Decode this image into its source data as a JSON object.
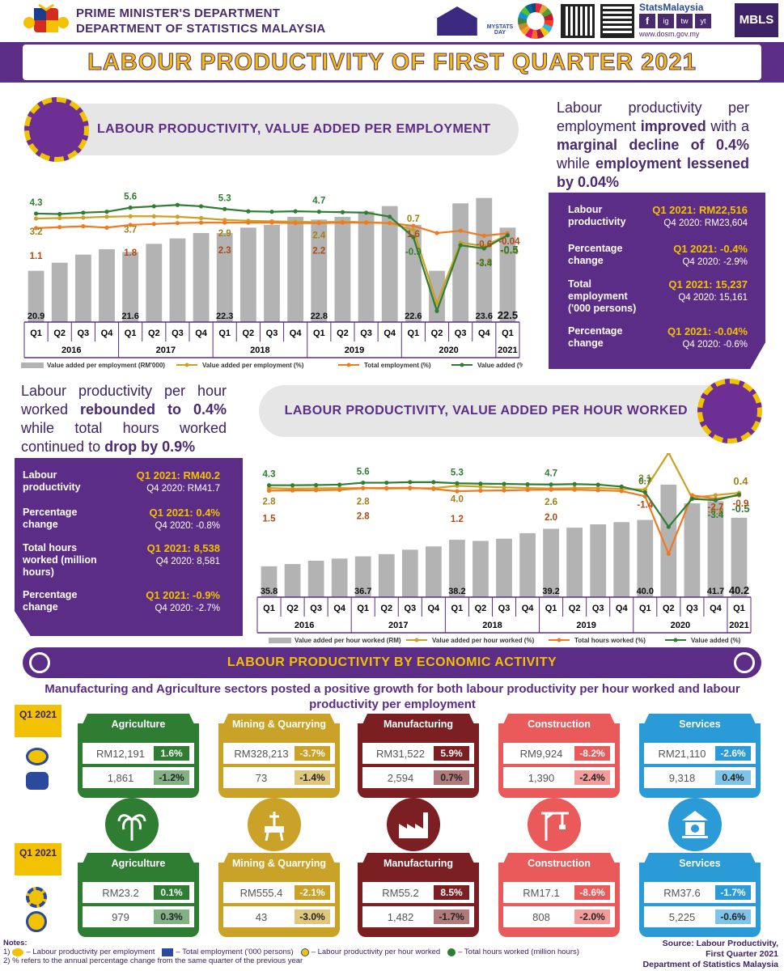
{
  "header": {
    "org_line1": "PRIME MINISTER'S DEPARTMENT",
    "org_line2": "DEPARTMENT OF STATISTICS MALAYSIA",
    "brand": "StatsMalaysia",
    "website": "www.dosm.gov.my",
    "mbls": "MBLS",
    "mystats": "MYSTATS DAY",
    "social": [
      "f",
      "ig",
      "tw",
      "yt"
    ]
  },
  "title": "LABOUR PRODUCTIVITY OF FIRST QUARTER 2021",
  "section1": {
    "title": "LABOUR PRODUCTIVITY, VALUE ADDED PER EMPLOYMENT",
    "narrative": {
      "p1": "Labour productivity per employment ",
      "b1": "improved",
      "p2": " with a ",
      "b2": "marginal decline of 0.4%",
      "p3": " while ",
      "b3": "employment lessened by 0.04%"
    },
    "panel": [
      {
        "label": "Labour productivity",
        "v1": "Q1 2021: RM22,516",
        "v2": "Q4 2020: RM23,604"
      },
      {
        "label": "Percentage change",
        "v1": "Q1 2021: -0.4%",
        "v2": "Q4 2020: -2.9%"
      },
      {
        "label": "Total employment ('000 persons)",
        "v1": "Q1 2021: 15,237",
        "v2": "Q4 2020: 15,161"
      },
      {
        "label": "Percentage change",
        "v1": "Q1 2021: -0.04%",
        "v2": "Q4 2020: -0.6%"
      }
    ]
  },
  "section2": {
    "title": "LABOUR PRODUCTIVITY, VALUE ADDED PER HOUR WORKED",
    "narrative": {
      "p1": "Labour productivity per hour worked ",
      "b1": "rebounded to 0.4%",
      "p2": " while total hours worked continued to ",
      "b2": "drop by 0.9%"
    },
    "panel": [
      {
        "label": "Labour productivity",
        "v1": "Q1 2021: RM40.2",
        "v2": "Q4 2020: RM41.7"
      },
      {
        "label": "Percentage change",
        "v1": "Q1 2021: 0.4%",
        "v2": "Q4 2020: -0.8%"
      },
      {
        "label": "Total hours worked (million hours)",
        "v1": "Q1 2021: 8,538",
        "v2": "Q4 2020: 8,581"
      },
      {
        "label": "Percentage change",
        "v1": "Q1 2021: -0.9%",
        "v2": "Q4 2020: -2.7%"
      }
    ]
  },
  "chart_data": [
    {
      "type": "bar",
      "title": "Labour productivity, value added per employment",
      "categories": [
        "Q1",
        "Q2",
        "Q3",
        "Q4",
        "Q1",
        "Q2",
        "Q3",
        "Q4",
        "Q1",
        "Q2",
        "Q3",
        "Q4",
        "Q1",
        "Q2",
        "Q3",
        "Q4",
        "Q1",
        "Q2",
        "Q3",
        "Q4",
        "Q1"
      ],
      "years": [
        "2016",
        "2017",
        "2018",
        "2019",
        "2020",
        "2021"
      ],
      "series": [
        {
          "name": "Value added per employment (RM'000)",
          "kind": "bar",
          "values": [
            20.9,
            21.2,
            21.5,
            21.7,
            21.6,
            21.9,
            22.1,
            22.3,
            22.3,
            22.5,
            22.6,
            22.9,
            22.8,
            22.9,
            23.1,
            23.3,
            22.6,
            20.9,
            23.4,
            23.6,
            22.5
          ]
        },
        {
          "name": "Value added per employment (%)",
          "kind": "line",
          "color": "#c9a227",
          "values": [
            3.2,
            3.3,
            3.4,
            3.6,
            3.7,
            3.7,
            3.6,
            3.3,
            2.9,
            2.7,
            2.6,
            2.5,
            2.4,
            2.5,
            2.4,
            2.2,
            0.7,
            -15.5,
            -2.1,
            -2.9,
            -0.4
          ]
        },
        {
          "name": "Total employment (%)",
          "kind": "line",
          "color": "#f07a22",
          "values": [
            1.1,
            1.3,
            1.5,
            1.2,
            1.8,
            2.0,
            2.2,
            2.3,
            2.3,
            2.3,
            2.3,
            2.2,
            2.2,
            2.3,
            2.3,
            2.2,
            1.6,
            0.0,
            0.5,
            -0.6,
            -0.04
          ]
        },
        {
          "name": "Value added (%)",
          "kind": "line",
          "color": "#2e7d32",
          "values": [
            4.3,
            4.2,
            4.5,
            4.7,
            5.6,
            5.9,
            6.2,
            5.9,
            5.3,
            4.8,
            4.7,
            4.8,
            4.7,
            4.6,
            4.5,
            3.6,
            -0.9,
            -17.2,
            -2.7,
            -3.4,
            -0.5
          ]
        }
      ],
      "bar_labels": {
        "0": "20.9",
        "4": "21.6",
        "8": "22.3",
        "12": "22.8",
        "16": "22.6",
        "19": "23.6",
        "20": "22.5"
      },
      "line_labels": [
        {
          "series": 3,
          "i": 0,
          "text": "4.3"
        },
        {
          "series": 1,
          "i": 0,
          "text": "3.2"
        },
        {
          "series": 2,
          "i": 0,
          "text": "1.1"
        },
        {
          "series": 3,
          "i": 4,
          "text": "5.6"
        },
        {
          "series": 1,
          "i": 4,
          "text": "3.7"
        },
        {
          "series": 2,
          "i": 4,
          "text": "1.8"
        },
        {
          "series": 3,
          "i": 8,
          "text": "5.3"
        },
        {
          "series": 1,
          "i": 8,
          "text": "2.9"
        },
        {
          "series": 2,
          "i": 8,
          "text": "2.3"
        },
        {
          "series": 3,
          "i": 12,
          "text": "4.7"
        },
        {
          "series": 1,
          "i": 12,
          "text": "2.4"
        },
        {
          "series": 2,
          "i": 12,
          "text": "2.2"
        },
        {
          "series": 2,
          "i": 16,
          "text": "1.6"
        },
        {
          "series": 1,
          "i": 16,
          "text": "0.7"
        },
        {
          "series": 3,
          "i": 16,
          "text": "-0.9"
        },
        {
          "series": 2,
          "i": 19,
          "text": "-0.6"
        },
        {
          "series": 1,
          "i": 19,
          "text": "-2.9"
        },
        {
          "series": 3,
          "i": 19,
          "text": "-3.4"
        },
        {
          "series": 2,
          "i": 20,
          "text": "-0.04"
        },
        {
          "series": 1,
          "i": 20,
          "text": "-0.4"
        },
        {
          "series": 3,
          "i": 20,
          "text": "-0.5"
        }
      ],
      "legend": [
        "Value added per employment (RM'000)",
        "Value added per employment (%)",
        "Total employment (%)",
        "Value added  (%)"
      ]
    },
    {
      "type": "bar",
      "title": "Labour productivity, value added per hour worked",
      "categories": [
        "Q1",
        "Q2",
        "Q3",
        "Q4",
        "Q1",
        "Q2",
        "Q3",
        "Q4",
        "Q1",
        "Q2",
        "Q3",
        "Q4",
        "Q1",
        "Q2",
        "Q3",
        "Q4",
        "Q1",
        "Q2",
        "Q3",
        "Q4",
        "Q1"
      ],
      "years": [
        "2016",
        "2017",
        "2018",
        "2019",
        "2020",
        "2021"
      ],
      "series": [
        {
          "name": "Value added per hour worked (RM)",
          "kind": "bar",
          "values": [
            35.8,
            36.0,
            36.3,
            36.5,
            36.7,
            36.9,
            37.3,
            37.6,
            38.2,
            38.1,
            38.3,
            38.8,
            39.2,
            39.3,
            39.6,
            39.8,
            40.0,
            43.2,
            41.5,
            41.7,
            40.2
          ]
        },
        {
          "name": "Value added per hour worked (%)",
          "kind": "line",
          "color": "#c9a227",
          "values": [
            2.8,
            2.5,
            2.7,
            2.8,
            2.8,
            2.6,
            2.7,
            2.8,
            4.0,
            3.6,
            3.2,
            2.9,
            2.6,
            2.8,
            2.9,
            2.4,
            2.1,
            21.0,
            -2.2,
            -0.8,
            0.4
          ]
        },
        {
          "name": "Total hours worked (%)",
          "kind": "line",
          "color": "#f07a22",
          "values": [
            1.5,
            1.6,
            1.7,
            1.9,
            2.8,
            2.9,
            3.0,
            2.4,
            1.2,
            1.5,
            1.6,
            1.9,
            2.0,
            2.0,
            1.7,
            1.3,
            -1.4,
            -31.0,
            -0.8,
            -2.7,
            -0.9
          ]
        },
        {
          "name": "Value added (%)",
          "kind": "line",
          "color": "#2e7d32",
          "values": [
            4.3,
            4.3,
            4.4,
            4.6,
            5.6,
            5.6,
            5.9,
            5.9,
            5.3,
            5.1,
            5.0,
            4.8,
            4.7,
            4.9,
            4.6,
            3.6,
            0.7,
            -17.1,
            -2.7,
            -3.4,
            -0.5
          ]
        }
      ],
      "bar_labels": {
        "0": "35.8",
        "4": "36.7",
        "8": "38.2",
        "12": "39.2",
        "16": "40.0",
        "19": "41.7",
        "20": "40.2"
      },
      "line_labels": [
        {
          "series": 3,
          "i": 0,
          "text": "4.3"
        },
        {
          "series": 1,
          "i": 0,
          "text": "2.8"
        },
        {
          "series": 2,
          "i": 0,
          "text": "1.5"
        },
        {
          "series": 3,
          "i": 4,
          "text": "5.6"
        },
        {
          "series": 1,
          "i": 4,
          "text": "2.8"
        },
        {
          "series": 2,
          "i": 4,
          "text": "2.8"
        },
        {
          "series": 3,
          "i": 8,
          "text": "5.3"
        },
        {
          "series": 1,
          "i": 8,
          "text": "4.0"
        },
        {
          "series": 2,
          "i": 8,
          "text": "1.2"
        },
        {
          "series": 3,
          "i": 12,
          "text": "4.7"
        },
        {
          "series": 1,
          "i": 12,
          "text": "2.6"
        },
        {
          "series": 2,
          "i": 12,
          "text": "2.0"
        },
        {
          "series": 1,
          "i": 16,
          "text": "2.1"
        },
        {
          "series": 3,
          "i": 16,
          "text": "0.7"
        },
        {
          "series": 2,
          "i": 16,
          "text": "-1.4"
        },
        {
          "series": 1,
          "i": 19,
          "text": "-0.8"
        },
        {
          "series": 2,
          "i": 19,
          "text": "-2.7"
        },
        {
          "series": 3,
          "i": 19,
          "text": "-3.4"
        },
        {
          "series": 1,
          "i": 20,
          "text": "0.4"
        },
        {
          "series": 3,
          "i": 20,
          "text": "-0.5"
        },
        {
          "series": 2,
          "i": 20,
          "text": "-0.9"
        }
      ],
      "legend": [
        "Value added per hour worked (RM)",
        "Value added per hour worked (%)",
        "Total hours worked (%)",
        "Value added  (%)"
      ]
    }
  ],
  "activity": {
    "bar_title": "LABOUR PRODUCTIVITY BY ECONOMIC ACTIVITY",
    "subtitle": "Manufacturing and Agriculture sectors posted a positive growth for both labour productivity per hour worked and labour productivity per employment",
    "quarter_label": "Q1 2021",
    "employment": [
      {
        "name": "Agriculture",
        "color": "#2e7d32",
        "v1": "RM12,191",
        "p1": "1.6%",
        "v2": "1,861",
        "p2": "-1.2%"
      },
      {
        "name": "Mining & Quarrying",
        "color": "#c9a227",
        "v1": "RM328,213",
        "p1": "-3.7%",
        "v2": "73",
        "p2": "-1.4%"
      },
      {
        "name": "Manufacturing",
        "color": "#7b1f22",
        "v1": "RM31,522",
        "p1": "5.9%",
        "v2": "2,594",
        "p2": "0.7%"
      },
      {
        "name": "Construction",
        "color": "#ea5a5a",
        "v1": "RM9,924",
        "p1": "-8.2%",
        "v2": "1,390",
        "p2": "-2.4%"
      },
      {
        "name": "Services",
        "color": "#2b9bd8",
        "v1": "RM21,110",
        "p1": "-2.6%",
        "v2": "9,318",
        "p2": "0.4%"
      }
    ],
    "hours": [
      {
        "name": "Agriculture",
        "color": "#2e7d32",
        "v1": "RM23.2",
        "p1": "0.1%",
        "v2": "979",
        "p2": "0.3%"
      },
      {
        "name": "Mining & Quarrying",
        "color": "#c9a227",
        "v1": "RM555.4",
        "p1": "-2.1%",
        "v2": "43",
        "p2": "-3.0%"
      },
      {
        "name": "Manufacturing",
        "color": "#7b1f22",
        "v1": "RM55.2",
        "p1": "8.5%",
        "v2": "1,482",
        "p2": "-1.7%"
      },
      {
        "name": "Construction",
        "color": "#ea5a5a",
        "v1": "RM17.1",
        "p1": "-8.6%",
        "v2": "808",
        "p2": "-2.0%"
      },
      {
        "name": "Services",
        "color": "#2b9bd8",
        "v1": "RM37.6",
        "p1": "-1.7%",
        "v2": "5,225",
        "p2": "-0.6%"
      }
    ]
  },
  "notes": {
    "title": "Notes:",
    "n1_a": "1)",
    "n1_b": "– Labour productivity per employment",
    "n1_c": "– Total employment ('000 persons)",
    "n1_d": "– Labour productivity per hour worked",
    "n1_e": "– Total hours worked (million hours)",
    "n2": "2) % refers to the annual percentage change from the same quarter of the previous year"
  },
  "source": {
    "l1": "Source: Labour Productivity,",
    "l2": "First Quarter 2021",
    "l3": "Department of Statistics Malaysia"
  }
}
